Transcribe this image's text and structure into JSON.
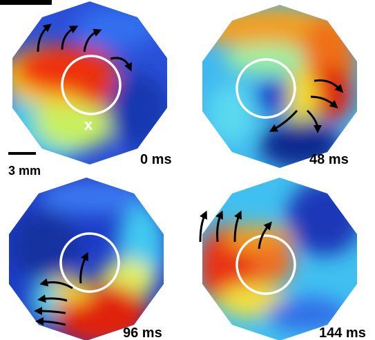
{
  "scale_bar": {
    "label": "3 mm"
  },
  "panels": [
    {
      "time": "0 ms",
      "marker": "x"
    },
    {
      "time": "48 ms"
    },
    {
      "time": "96 ms"
    },
    {
      "time": "144 ms"
    }
  ]
}
